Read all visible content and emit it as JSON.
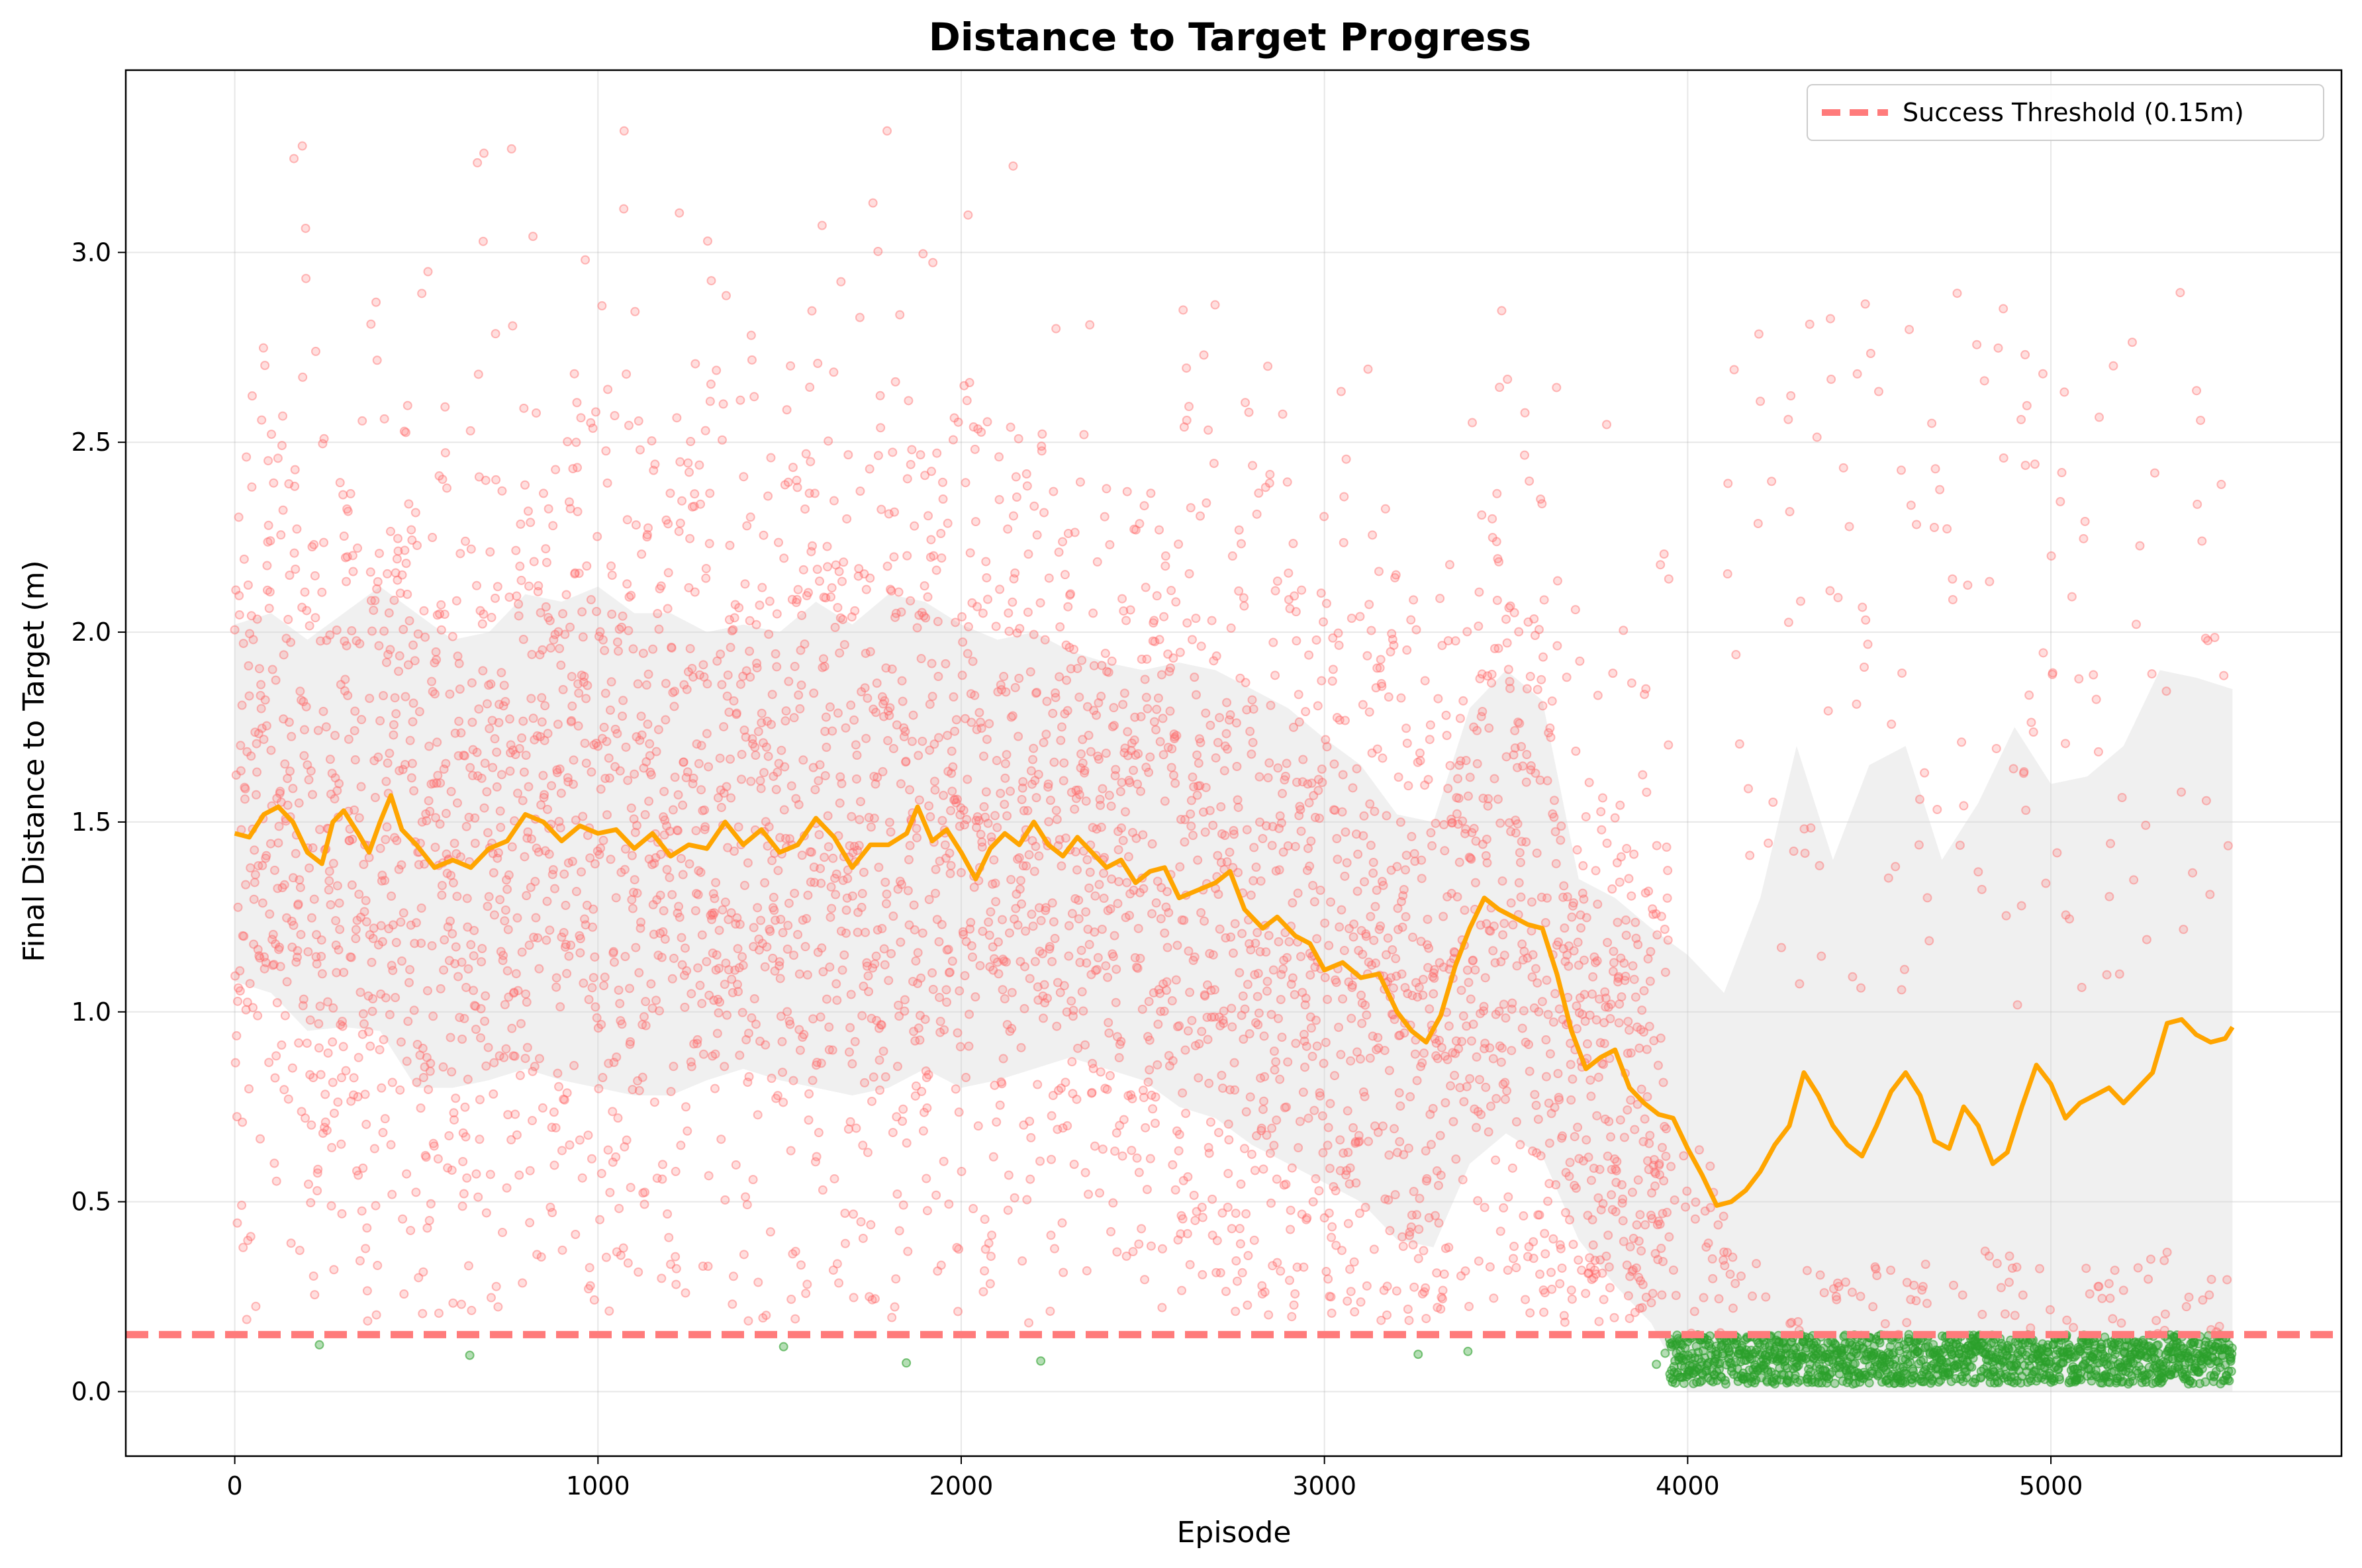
{
  "chart_data": {
    "type": "scatter",
    "title": "Distance to Target Progress",
    "xlabel": "Episode",
    "ylabel": "Final Distance to Target (m)",
    "xlim": [
      -300,
      5800
    ],
    "ylim": [
      -0.17,
      3.48
    ],
    "xticks": [
      0,
      1000,
      2000,
      3000,
      4000,
      5000
    ],
    "yticks": [
      0.0,
      0.5,
      1.0,
      1.5,
      2.0,
      2.5,
      3.0
    ],
    "grid": true,
    "legend_position": "top-right",
    "threshold": {
      "name": "Success Threshold (0.15m)",
      "value": 0.15,
      "color": "#ff7b7b",
      "style": "dashed"
    },
    "episodes": 5500,
    "moving_average": {
      "color": "#ffa500",
      "points": [
        [
          0,
          1.47
        ],
        [
          40,
          1.46
        ],
        [
          80,
          1.52
        ],
        [
          120,
          1.54
        ],
        [
          160,
          1.5
        ],
        [
          200,
          1.42
        ],
        [
          240,
          1.39
        ],
        [
          270,
          1.5
        ],
        [
          300,
          1.53
        ],
        [
          340,
          1.47
        ],
        [
          370,
          1.42
        ],
        [
          400,
          1.5
        ],
        [
          430,
          1.57
        ],
        [
          460,
          1.48
        ],
        [
          500,
          1.44
        ],
        [
          550,
          1.38
        ],
        [
          600,
          1.4
        ],
        [
          650,
          1.38
        ],
        [
          700,
          1.43
        ],
        [
          750,
          1.45
        ],
        [
          800,
          1.52
        ],
        [
          850,
          1.5
        ],
        [
          900,
          1.45
        ],
        [
          950,
          1.49
        ],
        [
          1000,
          1.47
        ],
        [
          1050,
          1.48
        ],
        [
          1100,
          1.43
        ],
        [
          1150,
          1.47
        ],
        [
          1200,
          1.41
        ],
        [
          1250,
          1.44
        ],
        [
          1300,
          1.43
        ],
        [
          1350,
          1.5
        ],
        [
          1400,
          1.44
        ],
        [
          1450,
          1.48
        ],
        [
          1500,
          1.42
        ],
        [
          1550,
          1.44
        ],
        [
          1600,
          1.51
        ],
        [
          1650,
          1.46
        ],
        [
          1700,
          1.38
        ],
        [
          1750,
          1.44
        ],
        [
          1800,
          1.44
        ],
        [
          1850,
          1.47
        ],
        [
          1880,
          1.54
        ],
        [
          1920,
          1.45
        ],
        [
          1960,
          1.48
        ],
        [
          2000,
          1.42
        ],
        [
          2040,
          1.35
        ],
        [
          2080,
          1.43
        ],
        [
          2120,
          1.47
        ],
        [
          2160,
          1.44
        ],
        [
          2200,
          1.5
        ],
        [
          2240,
          1.44
        ],
        [
          2280,
          1.41
        ],
        [
          2320,
          1.46
        ],
        [
          2360,
          1.42
        ],
        [
          2400,
          1.38
        ],
        [
          2440,
          1.4
        ],
        [
          2480,
          1.34
        ],
        [
          2520,
          1.37
        ],
        [
          2560,
          1.38
        ],
        [
          2600,
          1.3
        ],
        [
          2650,
          1.32
        ],
        [
          2700,
          1.34
        ],
        [
          2740,
          1.37
        ],
        [
          2780,
          1.27
        ],
        [
          2830,
          1.22
        ],
        [
          2870,
          1.25
        ],
        [
          2920,
          1.2
        ],
        [
          2960,
          1.18
        ],
        [
          3000,
          1.11
        ],
        [
          3050,
          1.13
        ],
        [
          3100,
          1.09
        ],
        [
          3150,
          1.1
        ],
        [
          3200,
          1.0
        ],
        [
          3240,
          0.95
        ],
        [
          3280,
          0.92
        ],
        [
          3320,
          0.99
        ],
        [
          3360,
          1.12
        ],
        [
          3400,
          1.22
        ],
        [
          3440,
          1.3
        ],
        [
          3480,
          1.27
        ],
        [
          3520,
          1.25
        ],
        [
          3560,
          1.23
        ],
        [
          3600,
          1.22
        ],
        [
          3640,
          1.1
        ],
        [
          3680,
          0.95
        ],
        [
          3720,
          0.85
        ],
        [
          3760,
          0.88
        ],
        [
          3800,
          0.9
        ],
        [
          3840,
          0.8
        ],
        [
          3880,
          0.76
        ],
        [
          3920,
          0.73
        ],
        [
          3960,
          0.72
        ],
        [
          4000,
          0.64
        ],
        [
          4040,
          0.57
        ],
        [
          4080,
          0.49
        ],
        [
          4120,
          0.5
        ],
        [
          4160,
          0.53
        ],
        [
          4200,
          0.58
        ],
        [
          4240,
          0.65
        ],
        [
          4280,
          0.7
        ],
        [
          4320,
          0.84
        ],
        [
          4360,
          0.78
        ],
        [
          4400,
          0.7
        ],
        [
          4440,
          0.65
        ],
        [
          4480,
          0.62
        ],
        [
          4520,
          0.7
        ],
        [
          4560,
          0.79
        ],
        [
          4600,
          0.84
        ],
        [
          4640,
          0.78
        ],
        [
          4680,
          0.66
        ],
        [
          4720,
          0.64
        ],
        [
          4760,
          0.75
        ],
        [
          4800,
          0.7
        ],
        [
          4840,
          0.6
        ],
        [
          4880,
          0.63
        ],
        [
          4920,
          0.75
        ],
        [
          4960,
          0.86
        ],
        [
          5000,
          0.81
        ],
        [
          5040,
          0.72
        ],
        [
          5080,
          0.76
        ],
        [
          5120,
          0.78
        ],
        [
          5160,
          0.8
        ],
        [
          5200,
          0.76
        ],
        [
          5240,
          0.8
        ],
        [
          5280,
          0.84
        ],
        [
          5320,
          0.97
        ],
        [
          5360,
          0.98
        ],
        [
          5400,
          0.94
        ],
        [
          5440,
          0.92
        ],
        [
          5480,
          0.93
        ],
        [
          5500,
          0.96
        ]
      ]
    },
    "std_band": {
      "color": "#d3d3d3",
      "points": [
        [
          0,
          1.08,
          2.02
        ],
        [
          100,
          1.05,
          2.05
        ],
        [
          200,
          0.95,
          1.98
        ],
        [
          300,
          0.96,
          2.05
        ],
        [
          400,
          0.95,
          2.12
        ],
        [
          500,
          0.8,
          2.05
        ],
        [
          600,
          0.8,
          1.98
        ],
        [
          700,
          0.82,
          2.0
        ],
        [
          800,
          0.85,
          2.1
        ],
        [
          900,
          0.82,
          2.08
        ],
        [
          1000,
          0.8,
          2.12
        ],
        [
          1100,
          0.78,
          2.05
        ],
        [
          1200,
          0.78,
          2.05
        ],
        [
          1300,
          0.82,
          2.0
        ],
        [
          1400,
          0.85,
          2.02
        ],
        [
          1500,
          0.82,
          2.0
        ],
        [
          1600,
          0.8,
          2.08
        ],
        [
          1700,
          0.78,
          2.02
        ],
        [
          1800,
          0.8,
          2.1
        ],
        [
          1900,
          0.85,
          2.08
        ],
        [
          2000,
          0.8,
          2.02
        ],
        [
          2100,
          0.82,
          1.98
        ],
        [
          2200,
          0.85,
          2.0
        ],
        [
          2300,
          0.88,
          1.95
        ],
        [
          2400,
          0.85,
          1.92
        ],
        [
          2500,
          0.82,
          1.9
        ],
        [
          2600,
          0.75,
          1.92
        ],
        [
          2700,
          0.72,
          1.9
        ],
        [
          2800,
          0.65,
          1.85
        ],
        [
          2900,
          0.6,
          1.8
        ],
        [
          3000,
          0.55,
          1.72
        ],
        [
          3100,
          0.5,
          1.65
        ],
        [
          3200,
          0.4,
          1.52
        ],
        [
          3300,
          0.38,
          1.5
        ],
        [
          3400,
          0.6,
          1.8
        ],
        [
          3500,
          0.68,
          1.9
        ],
        [
          3600,
          0.62,
          1.82
        ],
        [
          3700,
          0.4,
          1.35
        ],
        [
          3800,
          0.28,
          1.3
        ],
        [
          3900,
          0.18,
          1.22
        ],
        [
          4000,
          0.0,
          1.15
        ],
        [
          4100,
          0.0,
          1.05
        ],
        [
          4200,
          0.0,
          1.3
        ],
        [
          4300,
          0.0,
          1.7
        ],
        [
          4400,
          0.0,
          1.4
        ],
        [
          4500,
          0.0,
          1.65
        ],
        [
          4600,
          0.0,
          1.7
        ],
        [
          4700,
          0.0,
          1.4
        ],
        [
          4800,
          0.0,
          1.55
        ],
        [
          4900,
          0.0,
          1.75
        ],
        [
          5000,
          0.0,
          1.6
        ],
        [
          5100,
          0.0,
          1.62
        ],
        [
          5200,
          0.0,
          1.7
        ],
        [
          5300,
          0.0,
          1.9
        ],
        [
          5400,
          0.0,
          1.88
        ],
        [
          5500,
          0.0,
          1.85
        ]
      ]
    },
    "scatter_series": [
      {
        "name": "failure",
        "color": "#ff6b6b"
      },
      {
        "name": "success",
        "color": "#2ca02c"
      }
    ]
  }
}
